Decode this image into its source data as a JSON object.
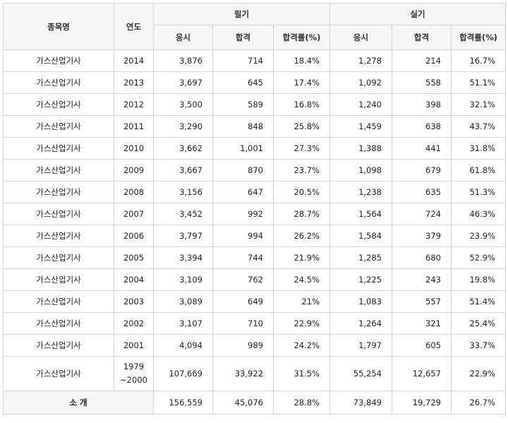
{
  "table": {
    "headers": {
      "name": "종목명",
      "year": "연도",
      "written": "필기",
      "practical": "실기",
      "sub": [
        "응시",
        "합격",
        "합격률(%)",
        "응시",
        "합격",
        "합격률(%)"
      ]
    },
    "rows": [
      {
        "name": "가스산업기사",
        "year": "2014",
        "w_apply": "3,876",
        "w_pass": "714",
        "w_rate": "18.4%",
        "p_apply": "1,278",
        "p_pass": "214",
        "p_rate": "16.7%"
      },
      {
        "name": "가스산업기사",
        "year": "2013",
        "w_apply": "3,697",
        "w_pass": "645",
        "w_rate": "17.4%",
        "p_apply": "1,092",
        "p_pass": "558",
        "p_rate": "51.1%"
      },
      {
        "name": "가스산업기사",
        "year": "2012",
        "w_apply": "3,500",
        "w_pass": "589",
        "w_rate": "16.8%",
        "p_apply": "1,240",
        "p_pass": "398",
        "p_rate": "32.1%"
      },
      {
        "name": "가스산업기사",
        "year": "2011",
        "w_apply": "3,290",
        "w_pass": "848",
        "w_rate": "25.8%",
        "p_apply": "1,459",
        "p_pass": "638",
        "p_rate": "43.7%"
      },
      {
        "name": "가스산업기사",
        "year": "2010",
        "w_apply": "3,662",
        "w_pass": "1,001",
        "w_rate": "27.3%",
        "p_apply": "1,388",
        "p_pass": "441",
        "p_rate": "31.8%"
      },
      {
        "name": "가스산업기사",
        "year": "2009",
        "w_apply": "3,667",
        "w_pass": "870",
        "w_rate": "23.7%",
        "p_apply": "1,098",
        "p_pass": "679",
        "p_rate": "61.8%"
      },
      {
        "name": "가스산업기사",
        "year": "2008",
        "w_apply": "3,156",
        "w_pass": "647",
        "w_rate": "20.5%",
        "p_apply": "1,238",
        "p_pass": "635",
        "p_rate": "51.3%"
      },
      {
        "name": "가스산업기사",
        "year": "2007",
        "w_apply": "3,452",
        "w_pass": "992",
        "w_rate": "28.7%",
        "p_apply": "1,564",
        "p_pass": "724",
        "p_rate": "46.3%"
      },
      {
        "name": "가스산업기사",
        "year": "2006",
        "w_apply": "3,797",
        "w_pass": "994",
        "w_rate": "26.2%",
        "p_apply": "1,584",
        "p_pass": "379",
        "p_rate": "23.9%"
      },
      {
        "name": "가스산업기사",
        "year": "2005",
        "w_apply": "3,394",
        "w_pass": "744",
        "w_rate": "21.9%",
        "p_apply": "1,285",
        "p_pass": "680",
        "p_rate": "52.9%"
      },
      {
        "name": "가스산업기사",
        "year": "2004",
        "w_apply": "3,109",
        "w_pass": "762",
        "w_rate": "24.5%",
        "p_apply": "1,225",
        "p_pass": "243",
        "p_rate": "19.8%"
      },
      {
        "name": "가스산업기사",
        "year": "2003",
        "w_apply": "3,089",
        "w_pass": "649",
        "w_rate": "21%",
        "p_apply": "1,083",
        "p_pass": "557",
        "p_rate": "51.4%"
      },
      {
        "name": "가스산업기사",
        "year": "2002",
        "w_apply": "3,107",
        "w_pass": "710",
        "w_rate": "22.9%",
        "p_apply": "1,264",
        "p_pass": "321",
        "p_rate": "25.4%"
      },
      {
        "name": "가스산업기사",
        "year": "2001",
        "w_apply": "4,094",
        "w_pass": "989",
        "w_rate": "24.2%",
        "p_apply": "1,797",
        "p_pass": "605",
        "p_rate": "33.7%"
      },
      {
        "name": "가스산업기사",
        "year_line1": "1979",
        "year_line2": "~2000",
        "w_apply": "107,669",
        "w_pass": "33,922",
        "w_rate": "31.5%",
        "p_apply": "55,254",
        "p_pass": "12,657",
        "p_rate": "22.9%"
      }
    ],
    "total": {
      "label": "소 개",
      "w_apply": "156,559",
      "w_pass": "45,076",
      "w_rate": "28.8%",
      "p_apply": "73,849",
      "p_pass": "19,729",
      "p_rate": "26.7%"
    }
  }
}
